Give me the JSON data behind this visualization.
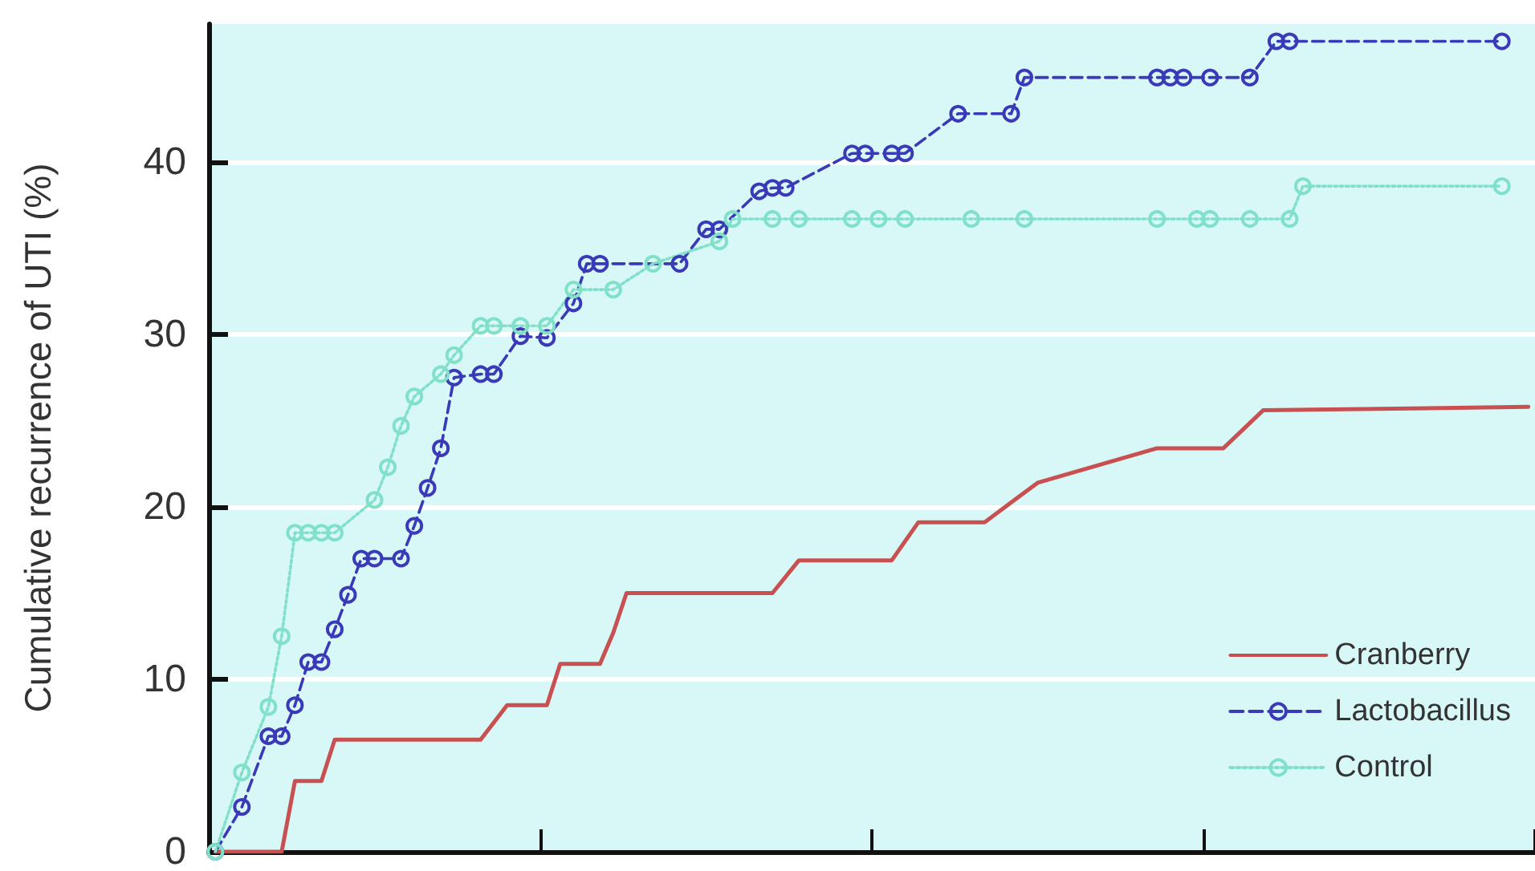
{
  "chart_data": {
    "type": "line",
    "ylabel": "Cumulative recurrence of UTI (%)",
    "categories": [
      null,
      null,
      null,
      null,
      null,
      null,
      null,
      null,
      null,
      null,
      null,
      null,
      null,
      null,
      null,
      null,
      null,
      null,
      null,
      null,
      null,
      null,
      null,
      null,
      null,
      null,
      null,
      null,
      null,
      null,
      null,
      null,
      null,
      null,
      null,
      null,
      null,
      null,
      null,
      null,
      null,
      null,
      null,
      null,
      null,
      null,
      null,
      null,
      null,
      null,
      null,
      null,
      null,
      null,
      null,
      null,
      null,
      null,
      null,
      null,
      null,
      null,
      null,
      null,
      null,
      null,
      null,
      null,
      null,
      null,
      null,
      null,
      null,
      null,
      null,
      null,
      null,
      null,
      null,
      null,
      null,
      null,
      null,
      null,
      null,
      null,
      null,
      null,
      null,
      null,
      null,
      null,
      null,
      null,
      null,
      null,
      null,
      null,
      null,
      null
    ],
    "ylim": [
      0,
      48
    ],
    "yticks": [
      0,
      10,
      20,
      30,
      40
    ],
    "tick_labels": "y",
    "grid": "y",
    "legend": "bottom right",
    "series": [
      {
        "name": "Cranberry",
        "color": "#c85050",
        "marker": "none",
        "line_style": "solid",
        "values": [
          0,
          null,
          null,
          null,
          null,
          0,
          4.1,
          null,
          4.1,
          6.5,
          null,
          null,
          null,
          null,
          null,
          null,
          null,
          null,
          null,
          null,
          6.5,
          null,
          8.5,
          null,
          null,
          8.5,
          10.9,
          null,
          null,
          10.9,
          12.7,
          15.0,
          null,
          null,
          null,
          null,
          null,
          null,
          null,
          null,
          null,
          null,
          15.0,
          null,
          16.9,
          null,
          null,
          null,
          null,
          null,
          null,
          16.9,
          null,
          19.1,
          null,
          null,
          null,
          null,
          19.1,
          null,
          null,
          null,
          21.4,
          null,
          null,
          null,
          null,
          null,
          null,
          null,
          null,
          23.4,
          null,
          null,
          null,
          null,
          23.4,
          null,
          null,
          25.6,
          null,
          null,
          null,
          null,
          null,
          null,
          null,
          null,
          null,
          null,
          null,
          null,
          null,
          null,
          null,
          null,
          null,
          null,
          null,
          25.8
        ]
      },
      {
        "name": "Lactobacillus",
        "color": "#3a3ab8",
        "marker": "circle",
        "line_style": "dashed",
        "values": [
          0,
          null,
          2.6,
          null,
          6.7,
          6.7,
          8.5,
          11.0,
          11.0,
          12.9,
          14.9,
          17.0,
          17.0,
          null,
          17.0,
          18.9,
          21.1,
          23.4,
          27.5,
          null,
          27.7,
          27.7,
          null,
          29.9,
          null,
          29.8,
          null,
          31.8,
          34.1,
          34.1,
          null,
          null,
          null,
          null,
          null,
          34.1,
          null,
          36.1,
          36.1,
          null,
          null,
          38.3,
          38.5,
          38.5,
          null,
          null,
          null,
          null,
          40.5,
          40.5,
          null,
          40.5,
          40.5,
          null,
          null,
          null,
          42.8,
          null,
          null,
          null,
          42.8,
          44.9,
          null,
          null,
          null,
          null,
          null,
          null,
          null,
          null,
          null,
          44.9,
          44.9,
          44.9,
          null,
          44.9,
          null,
          null,
          44.9,
          null,
          47.0,
          47.0,
          null,
          null,
          null,
          null,
          null,
          null,
          null,
          null,
          null,
          null,
          null,
          null,
          null,
          null,
          null,
          47.0,
          null,
          null
        ]
      },
      {
        "name": "Control",
        "color": "#80e0c8",
        "marker": "circle",
        "line_style": "dotted",
        "values": [
          0,
          null,
          4.6,
          null,
          8.4,
          12.5,
          18.5,
          18.5,
          18.5,
          18.5,
          null,
          null,
          20.4,
          22.3,
          24.7,
          26.4,
          null,
          27.7,
          28.8,
          null,
          30.5,
          30.5,
          null,
          30.5,
          null,
          30.5,
          null,
          32.6,
          null,
          null,
          32.6,
          null,
          null,
          34.1,
          null,
          null,
          null,
          null,
          35.4,
          36.7,
          null,
          null,
          36.7,
          null,
          36.7,
          null,
          null,
          null,
          36.7,
          null,
          36.7,
          null,
          36.7,
          null,
          null,
          null,
          null,
          36.7,
          null,
          null,
          null,
          36.7,
          null,
          null,
          null,
          null,
          null,
          null,
          null,
          null,
          null,
          36.7,
          null,
          null,
          36.7,
          36.7,
          null,
          null,
          36.7,
          null,
          null,
          36.7,
          38.6,
          null,
          null,
          null,
          null,
          null,
          null,
          null,
          null,
          null,
          null,
          null,
          null,
          null,
          null,
          38.6,
          null,
          null
        ]
      }
    ]
  }
}
